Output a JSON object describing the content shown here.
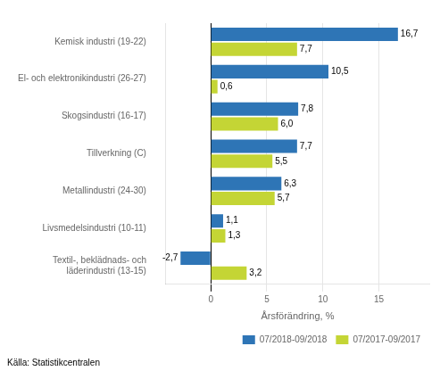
{
  "chart_data": {
    "type": "bar",
    "orientation": "horizontal",
    "categories": [
      "Kemisk industri (19-22)",
      "El- och elektronikindustri (26-27)",
      "Skogsindustri (16-17)",
      "Tillverkning (C)",
      "Metallindustri (24-30)",
      "Livsmedelsindustri (10-11)",
      "Textil-, beklädnads- och\nläderindustri (13-15)"
    ],
    "series": [
      {
        "name": "07/2018-09/2018",
        "color": "#2E75B6",
        "values": [
          16.7,
          10.5,
          7.8,
          7.7,
          6.3,
          1.1,
          -2.7
        ],
        "value_labels": [
          "16,7",
          "10,5",
          "7,8",
          "7,7",
          "6,3",
          "1,1",
          "-2,7"
        ]
      },
      {
        "name": "07/2017-09/2017",
        "color": "#C4D535",
        "values": [
          7.7,
          0.6,
          6.0,
          5.5,
          5.7,
          1.3,
          3.2
        ],
        "value_labels": [
          "7,7",
          "0,6",
          "6,0",
          "5,5",
          "5,7",
          "1,3",
          "3,2"
        ]
      }
    ],
    "xlabel": "Årsförändring, %",
    "xlim": [
      -4,
      19.5
    ],
    "xticks": [
      0,
      5,
      10,
      15
    ],
    "grid": true,
    "legend": "lower right",
    "data_labels": true,
    "annotations": [
      "Källa: Statistikcentralen"
    ]
  }
}
